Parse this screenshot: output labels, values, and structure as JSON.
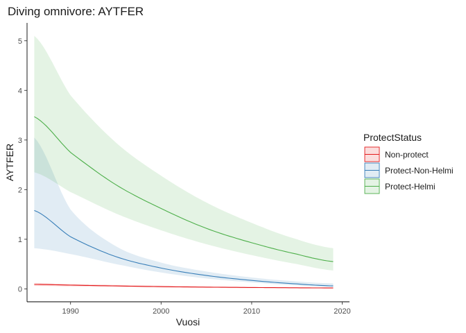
{
  "chart_data": {
    "type": "line",
    "title": "Diving omnivore: AYTFER",
    "xlabel": "Vuosi",
    "ylabel": "AYTFER",
    "xlim": [
      1985.2,
      2020.8
    ],
    "ylim": [
      -0.26,
      5.36
    ],
    "xticks": [
      1990,
      2000,
      2010,
      2020
    ],
    "yticks": [
      0,
      1,
      2,
      3,
      4,
      5
    ],
    "x_tick_labels": [
      "1990",
      "2000",
      "2010",
      "2020"
    ],
    "y_tick_labels": [
      "0",
      "1",
      "2",
      "3",
      "4",
      "5"
    ],
    "grid": false,
    "legend": {
      "title": "ProtectStatus",
      "position": "right"
    },
    "x": [
      1986,
      1990,
      1995,
      2000,
      2005,
      2010,
      2015,
      2019
    ],
    "series": [
      {
        "name": "Non-protect",
        "color": "#e41a1c",
        "fill": "#e41a1c",
        "values": [
          0.09,
          0.075,
          0.06,
          0.045,
          0.035,
          0.028,
          0.022,
          0.018
        ],
        "lower": [
          0.06,
          0.05,
          0.04,
          0.03,
          0.022,
          0.016,
          0.012,
          0.01
        ],
        "upper": [
          0.12,
          0.1,
          0.08,
          0.065,
          0.05,
          0.04,
          0.034,
          0.03
        ]
      },
      {
        "name": "Protect-Non-Helmi",
        "color": "#377eb8",
        "fill": "#377eb8",
        "values": [
          1.58,
          1.05,
          0.65,
          0.42,
          0.27,
          0.17,
          0.1,
          0.06
        ],
        "lower": [
          0.82,
          0.7,
          0.5,
          0.33,
          0.21,
          0.13,
          0.07,
          0.035
        ],
        "upper": [
          3.05,
          1.6,
          0.86,
          0.53,
          0.35,
          0.23,
          0.15,
          0.11
        ]
      },
      {
        "name": "Protect-Helmi",
        "color": "#4daf4a",
        "fill": "#4daf4a",
        "values": [
          3.47,
          2.75,
          2.1,
          1.62,
          1.22,
          0.93,
          0.7,
          0.55
        ],
        "lower": [
          2.35,
          1.95,
          1.52,
          1.18,
          0.9,
          0.68,
          0.5,
          0.37
        ],
        "upper": [
          5.1,
          3.9,
          2.95,
          2.28,
          1.74,
          1.33,
          1.0,
          0.82
        ]
      }
    ]
  }
}
